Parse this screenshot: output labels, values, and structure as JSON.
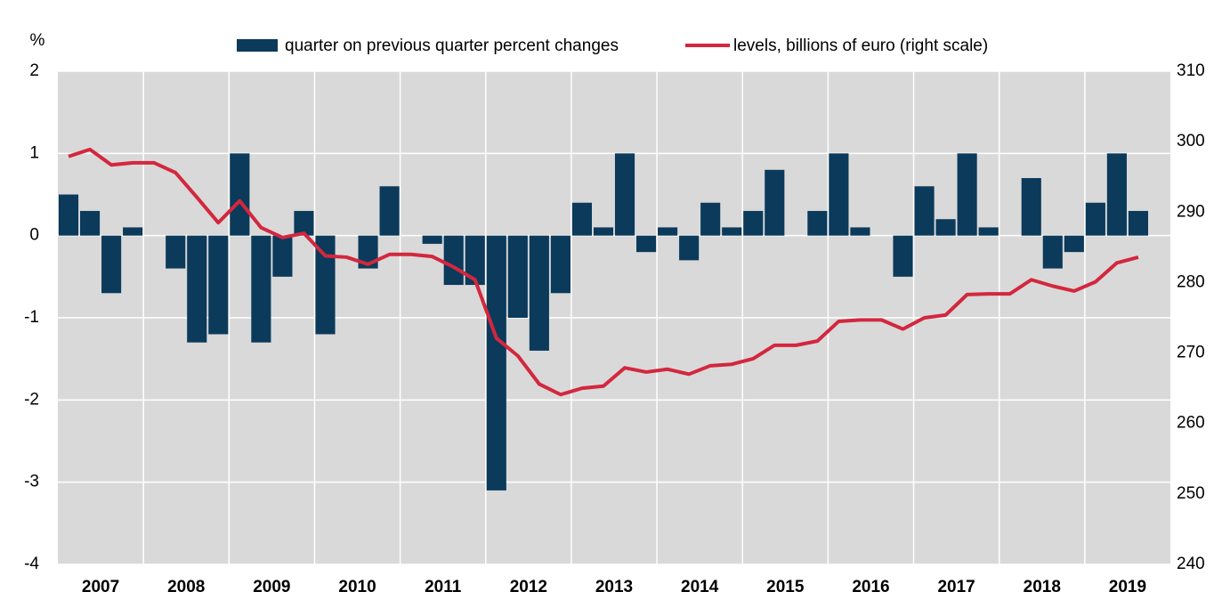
{
  "chart_data": {
    "type": "bar_line",
    "y_axis_label": "%",
    "categories": [
      null,
      null,
      null,
      null,
      null,
      null,
      null,
      null,
      null,
      null,
      null,
      null,
      null,
      null,
      null,
      null,
      null,
      null,
      null,
      null,
      null,
      null,
      null,
      null,
      null,
      null,
      null,
      null,
      null,
      null,
      null,
      null,
      null,
      null,
      null,
      null,
      null,
      null,
      null,
      null,
      null,
      null,
      null,
      null,
      null,
      null,
      null,
      null,
      null,
      null,
      null
    ],
    "year_labels": [
      "2007",
      "2008",
      "2009",
      "2010",
      "2011",
      "2012",
      "2013",
      "2014",
      "2015",
      "2016",
      "2017",
      "2018",
      "2019"
    ],
    "series": [
      {
        "name": "quarter on previous quarter percent changes",
        "type": "bar",
        "color": "#0b3a5b",
        "values": [
          0.5,
          0.3,
          -0.7,
          0.1,
          0,
          -0.4,
          -1.3,
          -1.2,
          1.0,
          -1.3,
          -0.5,
          0.3,
          -1.2,
          0,
          -0.4,
          0.6,
          0,
          -0.1,
          -0.6,
          -0.6,
          -3.1,
          -1.0,
          -1.4,
          -0.7,
          0.4,
          0.1,
          1.0,
          -0.2,
          0.1,
          -0.3,
          0.4,
          0.1,
          0.3,
          0.8,
          0,
          0.3,
          1.0,
          0.1,
          0,
          -0.5,
          0.6,
          0.2,
          1.0,
          0.1,
          0,
          0.7,
          -0.4,
          -0.2,
          0.4,
          1.0,
          0.3
        ]
      },
      {
        "name": "levels, billions of euro (right scale)",
        "type": "line",
        "axis": "y2",
        "color": "#d3273e",
        "values": [
          297.9,
          298.9,
          296.7,
          297.0,
          297.0,
          295.6,
          292.1,
          288.5,
          291.6,
          287.8,
          286.4,
          287.0,
          283.8,
          283.6,
          282.6,
          284.0,
          284.0,
          283.7,
          282.2,
          280.4,
          272.1,
          269.6,
          265.6,
          264.1,
          265.0,
          265.3,
          267.9,
          267.3,
          267.7,
          267.0,
          268.2,
          268.4,
          269.2,
          271.1,
          271.1,
          271.7,
          274.5,
          274.7,
          274.7,
          273.4,
          275.0,
          275.4,
          278.3,
          278.4,
          278.4,
          280.4,
          279.5,
          278.8,
          280.1,
          282.8,
          283.6
        ]
      }
    ],
    "ylim": [
      -4,
      2
    ],
    "yticks": [
      -4,
      -3,
      -2,
      -1,
      0,
      1,
      2
    ],
    "y2lim": [
      240,
      310
    ],
    "y2ticks": [
      240,
      250,
      260,
      270,
      280,
      290,
      300,
      310
    ],
    "grid": true,
    "legend": "top"
  }
}
